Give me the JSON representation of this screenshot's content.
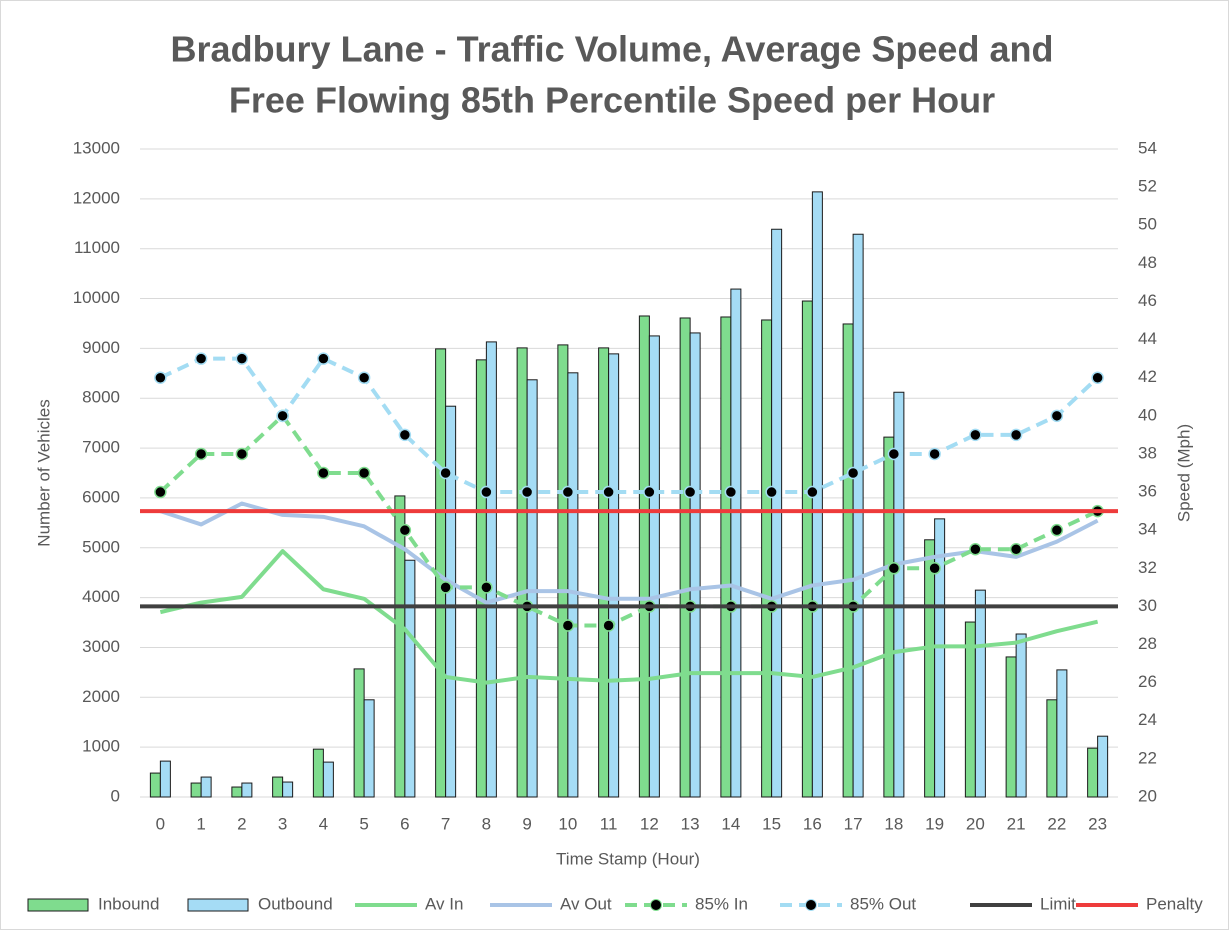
{
  "chart_data": {
    "type": "bar-line-combo",
    "title": [
      "Bradbury Lane - Traffic Volume, Average Speed and",
      "Free Flowing 85th Percentile Speed per Hour"
    ],
    "x_label": "Time Stamp (Hour)",
    "y_label": "Number of Vehicles",
    "y2_label": "Speed (Mph)",
    "categories": [
      "0",
      "1",
      "2",
      "3",
      "4",
      "5",
      "6",
      "7",
      "8",
      "9",
      "10",
      "11",
      "12",
      "13",
      "14",
      "15",
      "16",
      "17",
      "18",
      "19",
      "20",
      "21",
      "22",
      "23"
    ],
    "ylim": [
      0,
      13000
    ],
    "yticks": [
      0,
      1000,
      2000,
      3000,
      4000,
      5000,
      6000,
      7000,
      8000,
      9000,
      10000,
      11000,
      12000,
      13000
    ],
    "y2lim": [
      20,
      54
    ],
    "y2ticks": [
      20,
      22,
      24,
      26,
      28,
      30,
      32,
      34,
      36,
      38,
      40,
      42,
      44,
      46,
      48,
      50,
      52,
      54
    ],
    "grid": true,
    "legend": "bottom",
    "series": [
      {
        "name": "Inbound",
        "kind": "bar",
        "color": "#7fdc8e",
        "values": [
          480,
          280,
          200,
          400,
          960,
          2570,
          6040,
          8990,
          8770,
          9010,
          9070,
          9010,
          9650,
          9610,
          9630,
          9570,
          9950,
          9490,
          7220,
          5160,
          3510,
          2810,
          1950,
          980
        ]
      },
      {
        "name": "Outbound",
        "kind": "bar",
        "color": "#a5dcf5",
        "values": [
          720,
          400,
          280,
          300,
          700,
          1950,
          4750,
          7840,
          9130,
          8370,
          8510,
          8890,
          9250,
          9310,
          10190,
          11390,
          12140,
          11290,
          8120,
          5580,
          4150,
          3270,
          2550,
          1220
        ]
      },
      {
        "name": "Av In",
        "kind": "line",
        "axis": "y2",
        "color": "#7fdc8e",
        "values": [
          29.7,
          30.2,
          30.5,
          32.9,
          30.9,
          30.4,
          28.8,
          26.3,
          26.0,
          26.3,
          26.2,
          26.1,
          26.2,
          26.5,
          26.5,
          26.5,
          26.3,
          26.8,
          27.6,
          27.9,
          27.9,
          28.1,
          28.7,
          29.2
        ]
      },
      {
        "name": "Av Out",
        "kind": "line",
        "axis": "y2",
        "color": "#a9c4e6",
        "values": [
          35.0,
          34.3,
          35.4,
          34.8,
          34.7,
          34.2,
          33.0,
          31.4,
          30.2,
          30.8,
          30.8,
          30.4,
          30.4,
          30.9,
          31.1,
          30.4,
          31.1,
          31.4,
          32.2,
          32.6,
          32.9,
          32.6,
          33.4,
          34.5
        ]
      },
      {
        "name": "85% In",
        "kind": "line",
        "axis": "y2",
        "dashed": true,
        "markers": true,
        "color": "#7fdc8e",
        "values": [
          36,
          38,
          38,
          40,
          37,
          37,
          34,
          31,
          31,
          30,
          29,
          29,
          30,
          30,
          30,
          30,
          30,
          30,
          32,
          32,
          33,
          33,
          34,
          35
        ]
      },
      {
        "name": "85% Out",
        "kind": "line",
        "axis": "y2",
        "dashed": true,
        "markers": true,
        "color": "#a3dcf3",
        "values": [
          42,
          43,
          43,
          40,
          43,
          42,
          39,
          37,
          36,
          36,
          36,
          36,
          36,
          36,
          36,
          36,
          36,
          37,
          38,
          38,
          39,
          39,
          40,
          42
        ]
      },
      {
        "name": "Limit",
        "kind": "hline",
        "axis": "y2",
        "color": "#404040",
        "value": 30
      },
      {
        "name": "Penalty",
        "kind": "hline",
        "axis": "y2",
        "color": "#ee3b3b",
        "value": 35
      }
    ]
  }
}
